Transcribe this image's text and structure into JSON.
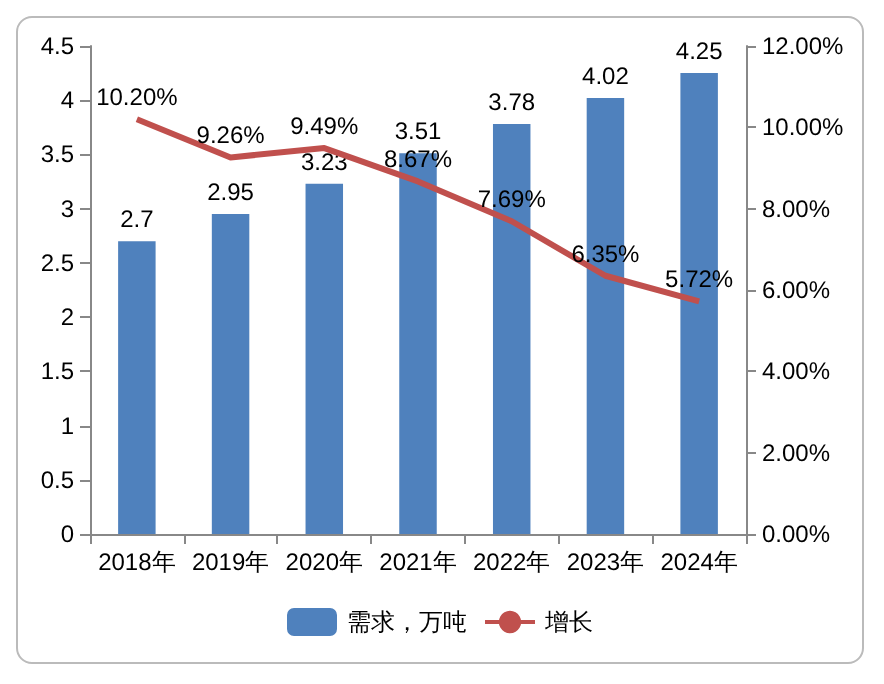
{
  "chart_data": {
    "type": "bar",
    "categories": [
      "2018年",
      "2019年",
      "2020年",
      "2021年",
      "2022年",
      "2023年",
      "2024年"
    ],
    "series": [
      {
        "name": "需求，万吨",
        "color": "#4f81bd",
        "values": [
          2.7,
          2.95,
          3.23,
          3.51,
          3.78,
          4.02,
          4.25
        ],
        "value_labels": [
          "2.7",
          "2.95",
          "3.23",
          "3.51",
          "3.78",
          "4.02",
          "4.25"
        ]
      },
      {
        "name": "增长",
        "type": "line",
        "axis": "y2",
        "color": "#c0504d",
        "values": [
          10.2,
          9.26,
          9.49,
          8.67,
          7.69,
          6.35,
          5.72
        ],
        "value_labels": [
          "10.20%",
          "9.26%",
          "9.49%",
          "8.67%",
          "7.69%",
          "6.35%",
          "5.72%"
        ]
      }
    ],
    "ylim": [
      0,
      4.5
    ],
    "yticks": [
      0,
      0.5,
      1,
      1.5,
      2,
      2.5,
      3,
      3.5,
      4,
      4.5
    ],
    "y2lim": [
      0,
      12
    ],
    "y2ticks": [
      {
        "value": 0,
        "label": "0.00%"
      },
      {
        "value": 2,
        "label": "2.00%"
      },
      {
        "value": 4,
        "label": "4.00%"
      },
      {
        "value": 6,
        "label": "6.00%"
      },
      {
        "value": 8,
        "label": "8.00%"
      },
      {
        "value": 10,
        "label": "10.00%"
      },
      {
        "value": 12,
        "label": "12.00%"
      }
    ],
    "legend": "bottom",
    "grid": false,
    "marker": "none"
  }
}
